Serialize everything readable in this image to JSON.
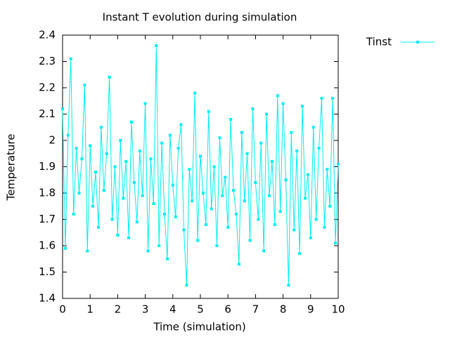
{
  "chart_data": {
    "type": "line",
    "title": "Instant T evolution during simulation",
    "xlabel": "Time (simulation)",
    "ylabel": "Temperature",
    "x": [
      0,
      0.1,
      0.2,
      0.3,
      0.4,
      0.5,
      0.6,
      0.7,
      0.8,
      0.9,
      1,
      1.1,
      1.2,
      1.3,
      1.4,
      1.5,
      1.6,
      1.7,
      1.8,
      1.9,
      2,
      2.1,
      2.2,
      2.3,
      2.4,
      2.5,
      2.6,
      2.7,
      2.8,
      2.9,
      3,
      3.1,
      3.2,
      3.3,
      3.4,
      3.5,
      3.6,
      3.7,
      3.8,
      3.9,
      4,
      4.1,
      4.2,
      4.3,
      4.4,
      4.5,
      4.6,
      4.7,
      4.8,
      4.9,
      5,
      5.1,
      5.2,
      5.3,
      5.4,
      5.5,
      5.6,
      5.7,
      5.8,
      5.9,
      6,
      6.1,
      6.2,
      6.3,
      6.4,
      6.5,
      6.6,
      6.7,
      6.8,
      6.9,
      7,
      7.1,
      7.2,
      7.3,
      7.4,
      7.5,
      7.6,
      7.7,
      7.8,
      7.9,
      8,
      8.1,
      8.2,
      8.3,
      8.4,
      8.5,
      8.6,
      8.7,
      8.8,
      8.9,
      9,
      9.1,
      9.2,
      9.3,
      9.4,
      9.5,
      9.6,
      9.7,
      9.8,
      9.9,
      10
    ],
    "series": [
      {
        "name": "Tinst",
        "color": "#00eeee",
        "values": [
          2.12,
          1.59,
          2.02,
          2.31,
          1.72,
          1.97,
          1.8,
          1.93,
          2.21,
          1.58,
          1.98,
          1.75,
          1.88,
          1.67,
          2.05,
          1.81,
          1.95,
          2.24,
          1.7,
          1.9,
          1.64,
          2.0,
          1.78,
          1.92,
          1.63,
          2.07,
          1.84,
          1.69,
          1.96,
          1.79,
          2.14,
          1.58,
          1.93,
          1.76,
          2.36,
          1.6,
          1.99,
          1.72,
          1.55,
          2.02,
          1.83,
          1.71,
          1.97,
          2.06,
          1.66,
          1.45,
          1.89,
          1.77,
          2.18,
          1.62,
          1.94,
          1.8,
          1.68,
          2.11,
          1.74,
          1.9,
          1.6,
          2.01,
          1.79,
          1.86,
          1.67,
          2.08,
          1.81,
          1.72,
          1.53,
          2.03,
          1.77,
          1.95,
          1.62,
          2.12,
          1.84,
          1.7,
          1.99,
          1.58,
          2.1,
          1.79,
          1.92,
          1.68,
          2.17,
          1.73,
          2.14,
          1.85,
          1.45,
          2.03,
          1.66,
          1.96,
          1.57,
          2.13,
          1.78,
          1.87,
          1.63,
          2.05,
          1.7,
          1.97,
          2.16,
          1.67,
          1.89,
          1.75,
          2.16,
          1.61,
          1.91
        ]
      }
    ],
    "xlim": [
      0,
      10
    ],
    "xticks": [
      0,
      1,
      2,
      3,
      4,
      5,
      6,
      7,
      8,
      9,
      10
    ],
    "ylim": [
      1.4,
      2.4
    ],
    "yticks": [
      1.4,
      1.5,
      1.6,
      1.7,
      1.8,
      1.9,
      2,
      2.1,
      2.2,
      2.3,
      2.4
    ]
  }
}
